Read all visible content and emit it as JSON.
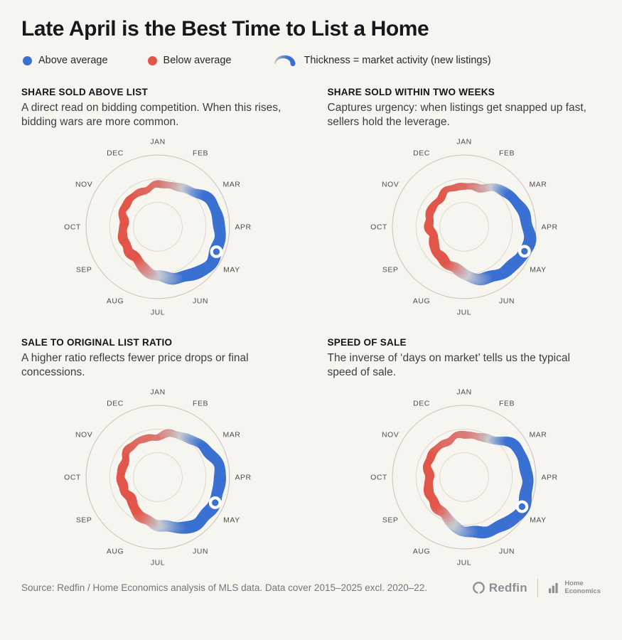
{
  "figure": {
    "title": "Late April is the Best Time to List a Home"
  },
  "legend": {
    "above_label": "Above average",
    "below_label": "Below average",
    "thickness_label": "Thickness = market activity (new listings)"
  },
  "palette": {
    "above": "#3a70d1",
    "below": "#e2564a",
    "neutral": "#c7ccd3",
    "grid": "#dcd8cc",
    "grid_outer": "#c6c2b6",
    "background": "#f7f5ef",
    "month_label": "#4c4e52"
  },
  "chart_data": [
    {
      "type": "radial-ribbon",
      "title": "SHARE SOLD ABOVE LIST",
      "subtitle": "A direct read on bidding competition. When this rises, bidding wars are more common.",
      "categories": [
        "JAN",
        "FEB",
        "MAR",
        "APR",
        "MAY",
        "JUN",
        "JUL",
        "AUG",
        "SEP",
        "OCT",
        "NOV",
        "DEC"
      ],
      "series": [
        {
          "name": "deviation_from_average",
          "values": [
            -0.32,
            -0.08,
            0.45,
            0.78,
            0.82,
            0.55,
            0.05,
            -0.35,
            -0.58,
            -0.62,
            -0.5,
            -0.4
          ]
        },
        {
          "name": "market_activity_thickness",
          "values": [
            0.3,
            0.45,
            0.72,
            0.92,
            1.0,
            0.95,
            0.82,
            0.72,
            0.62,
            0.55,
            0.42,
            0.3
          ]
        }
      ],
      "marker": {
        "angle_deg": 113
      },
      "radial_range": [
        -1,
        1
      ],
      "legend_position": "top"
    },
    {
      "type": "radial-ribbon",
      "title": "SHARE SOLD WITHIN TWO WEEKS",
      "subtitle": "Captures urgency: when listings get snapped up fast, sellers hold the leverage.",
      "categories": [
        "JAN",
        "FEB",
        "MAR",
        "APR",
        "MAY",
        "JUN",
        "JUL",
        "AUG",
        "SEP",
        "OCT",
        "NOV",
        "DEC"
      ],
      "series": [
        {
          "name": "deviation_from_average",
          "values": [
            -0.35,
            -0.12,
            0.5,
            0.86,
            0.88,
            0.52,
            0.0,
            -0.42,
            -0.66,
            -0.68,
            -0.54,
            -0.42
          ]
        },
        {
          "name": "market_activity_thickness",
          "values": [
            0.3,
            0.45,
            0.72,
            0.92,
            1.0,
            0.95,
            0.82,
            0.72,
            0.62,
            0.55,
            0.42,
            0.3
          ]
        }
      ],
      "marker": {
        "angle_deg": 112
      },
      "radial_range": [
        -1,
        1
      ],
      "legend_position": "top"
    },
    {
      "type": "radial-ribbon",
      "title": "SALE TO ORIGINAL LIST RATIO",
      "subtitle": "A higher ratio reflects fewer price drops or final concessions.",
      "categories": [
        "JAN",
        "FEB",
        "MAR",
        "APR",
        "MAY",
        "JUN",
        "JUL",
        "AUG",
        "SEP",
        "OCT",
        "NOV",
        "DEC"
      ],
      "series": [
        {
          "name": "deviation_from_average",
          "values": [
            -0.3,
            -0.02,
            0.48,
            0.74,
            0.78,
            0.5,
            0.04,
            -0.38,
            -0.62,
            -0.58,
            -0.46,
            -0.36
          ]
        },
        {
          "name": "market_activity_thickness",
          "values": [
            0.3,
            0.45,
            0.72,
            0.92,
            1.0,
            0.95,
            0.82,
            0.72,
            0.62,
            0.55,
            0.42,
            0.3
          ]
        }
      ],
      "marker": {
        "angle_deg": 114
      },
      "radial_range": [
        -1,
        1
      ],
      "legend_position": "top"
    },
    {
      "type": "radial-ribbon",
      "title": "SPEED OF SALE",
      "subtitle": "The inverse of ‘days on market’ tells us the typical speed of sale.",
      "categories": [
        "JAN",
        "FEB",
        "MAR",
        "APR",
        "MAY",
        "JUN",
        "JUL",
        "AUG",
        "SEP",
        "OCT",
        "NOV",
        "DEC"
      ],
      "series": [
        {
          "name": "deviation_from_average",
          "values": [
            -0.3,
            -0.1,
            0.58,
            0.84,
            0.9,
            0.7,
            0.28,
            -0.22,
            -0.5,
            -0.56,
            -0.46,
            -0.36
          ]
        },
        {
          "name": "market_activity_thickness",
          "values": [
            0.3,
            0.45,
            0.72,
            0.92,
            1.0,
            0.95,
            0.82,
            0.72,
            0.62,
            0.55,
            0.42,
            0.3
          ]
        }
      ],
      "marker": {
        "angle_deg": 117
      },
      "radial_range": [
        -1,
        1
      ],
      "legend_position": "top"
    }
  ],
  "footer": {
    "source": "Source: Redfin / Home Economics analysis of MLS data. Data cover 2015–2025 excl. 2020–22.",
    "redfin_label": "Redfin",
    "home_economics_line1": "Home",
    "home_economics_line2": "Economics"
  }
}
